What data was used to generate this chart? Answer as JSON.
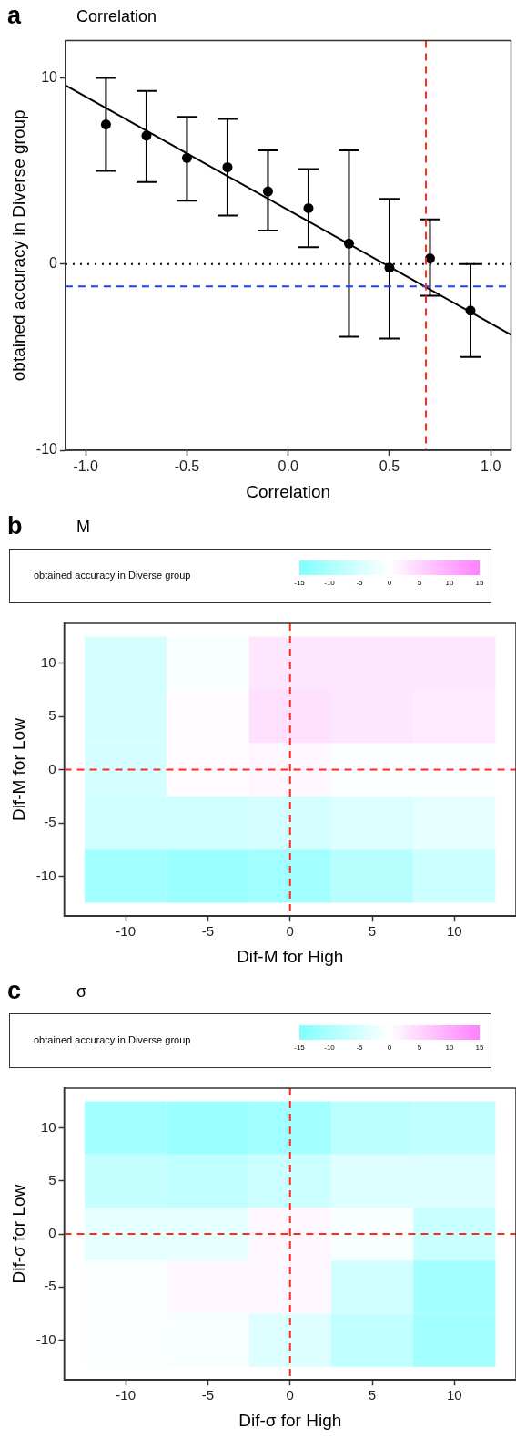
{
  "chart_data": [
    {
      "type": "scatter",
      "title": "Correlation",
      "xlabel": "Correlation",
      "ylabel": "obtained accuracy in Diverse group",
      "annotations": [
        "a"
      ],
      "x": [
        -0.9,
        -0.7,
        -0.5,
        -0.3,
        -0.1,
        0.1,
        0.3,
        0.5,
        0.7,
        0.9
      ],
      "series": [
        {
          "type": "scatter",
          "color": "#000000",
          "marker": "circle",
          "values": [
            7.5,
            6.9,
            5.7,
            5.2,
            3.9,
            3.0,
            1.1,
            -0.2,
            0.3,
            -2.5
          ],
          "errors": [
            [
              5.0,
              10.0
            ],
            [
              4.4,
              9.3
            ],
            [
              3.4,
              7.9
            ],
            [
              2.6,
              7.8
            ],
            [
              1.8,
              6.1
            ],
            [
              0.9,
              5.1
            ],
            [
              -3.9,
              6.1
            ],
            [
              -4.0,
              3.5
            ],
            [
              -1.7,
              2.4
            ],
            [
              -5.0,
              0.0
            ]
          ]
        },
        {
          "type": "line",
          "color": "#000000",
          "x": [
            -1.1,
            1.1
          ],
          "values": [
            9.6,
            -3.8
          ]
        }
      ],
      "xlim": [
        -1.1,
        1.1
      ],
      "ylim": [
        -10,
        12
      ],
      "xticks": [
        {
          "value": -1,
          "label": "-1.0"
        },
        -0.5,
        {
          "value": 0,
          "label": "0.0"
        },
        0.5,
        {
          "value": 1,
          "label": "1.0"
        }
      ],
      "yticks": [
        -10,
        0,
        10
      ],
      "ref_lines": [
        {
          "axis": "y",
          "value": 0,
          "color": "#000000",
          "line_style": "dotted"
        },
        {
          "axis": "y",
          "value": -1.2,
          "color": "#1f3cff",
          "line_style": "dashed"
        },
        {
          "axis": "x",
          "value": 0.68,
          "color": "#ff2a1a",
          "line_style": "dashed"
        }
      ],
      "grid": false,
      "legend": false
    },
    {
      "type": "heatmap",
      "title": "M",
      "xlabel": "Dif-M for High",
      "ylabel": "Dif-M for Low",
      "clabel": "obtained accuracy in Diverse group",
      "annotations": [
        "b"
      ],
      "categories": [
        "-10",
        "-5",
        "0",
        "5",
        "10"
      ],
      "y_categories": [
        "10",
        "5",
        "0",
        "-5",
        "-10"
      ],
      "cells": [
        [
          -5,
          -1,
          3,
          3,
          3
        ],
        [
          -5,
          0.5,
          3.5,
          3,
          2.5
        ],
        [
          -5,
          0.5,
          1,
          -0.5,
          -0.5
        ],
        [
          -5.5,
          -5.5,
          -5,
          -4,
          -3
        ],
        [
          -11,
          -12,
          -11,
          -8.5,
          -6
        ]
      ],
      "clim": [
        -15,
        15
      ],
      "cticks": [
        -15,
        -10,
        -5,
        0,
        5,
        10,
        15
      ],
      "colors": [
        "#80ffff",
        "#ffffff",
        "#ff80ff"
      ],
      "ref_lines": [
        {
          "axis": "x",
          "value": "0",
          "color": "#ff2a1a",
          "line_style": "dashed"
        },
        {
          "axis": "y",
          "value": "0",
          "color": "#ff2a1a",
          "line_style": "dashed"
        }
      ],
      "grid": false
    },
    {
      "type": "heatmap",
      "title": "σ",
      "xlabel": "Dif-σ for High",
      "ylabel": "Dif-σ for Low",
      "clabel": "obtained accuracy in Diverse group",
      "annotations": [
        "c"
      ],
      "categories": [
        "-10",
        "-5",
        "0",
        "5",
        "10"
      ],
      "y_categories": [
        "10",
        "5",
        "0",
        "-5",
        "-10"
      ],
      "cells": [
        [
          -11,
          -12,
          -11,
          -8,
          -7.5
        ],
        [
          -7,
          -7.5,
          -6,
          -4,
          -4
        ],
        [
          -3,
          -3,
          1,
          -1,
          -6.5
        ],
        [
          -0.5,
          1,
          1,
          -5.5,
          -11
        ],
        [
          -0.5,
          -1,
          -4,
          -7.5,
          -11
        ]
      ],
      "clim": [
        -15,
        15
      ],
      "cticks": [
        -15,
        -10,
        -5,
        0,
        5,
        10,
        15
      ],
      "colors": [
        "#80ffff",
        "#ffffff",
        "#ff80ff"
      ],
      "ref_lines": [
        {
          "axis": "x",
          "value": "0",
          "color": "#ff2a1a",
          "line_style": "dashed"
        },
        {
          "axis": "y",
          "value": "0",
          "color": "#ff2a1a",
          "line_style": "dashed"
        }
      ],
      "grid": false
    }
  ]
}
